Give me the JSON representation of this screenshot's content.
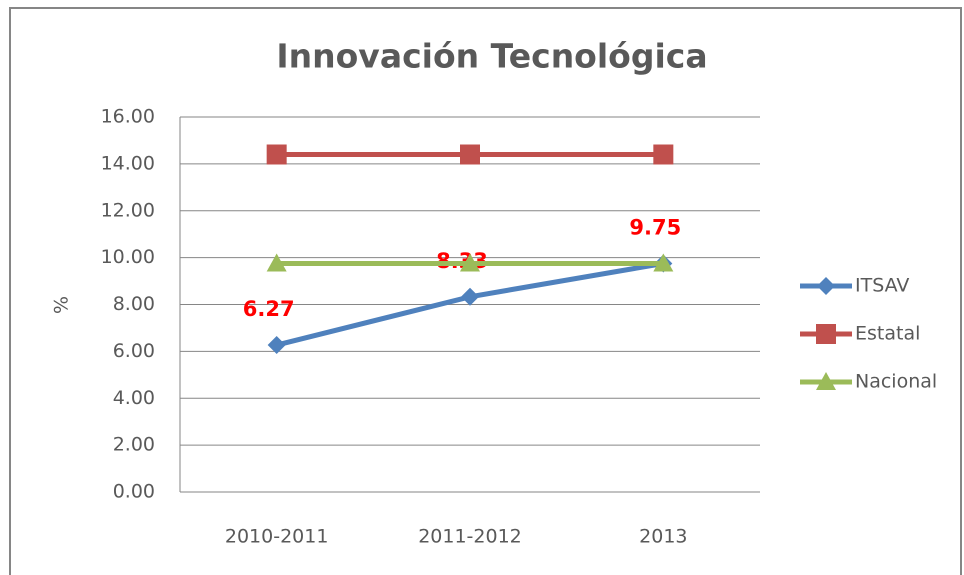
{
  "chart_data": {
    "type": "line",
    "title": "Innovación Tecnológica",
    "y_label": "%",
    "categories": [
      "2010-2011",
      "2011-2012",
      "2013"
    ],
    "series": [
      {
        "name": "ITSAV",
        "color": "#4f81bd",
        "marker": "diamond",
        "values": [
          6.27,
          8.33,
          9.75
        ],
        "data_labels": true,
        "label_color": "#ff0000"
      },
      {
        "name": "Estatal",
        "color": "#c0504d",
        "marker": "square",
        "values": [
          14.4,
          14.4,
          14.4
        ]
      },
      {
        "name": "Nacional",
        "color": "#9bbb59",
        "marker": "triangle",
        "values": [
          9.75,
          9.75,
          9.75
        ]
      }
    ],
    "ylim": [
      0,
      16
    ],
    "yticks": [
      {
        "value": 0,
        "label": "0.00"
      },
      {
        "value": 2,
        "label": "2.00"
      },
      {
        "value": 4,
        "label": "4.00"
      },
      {
        "value": 6,
        "label": "6.00"
      },
      {
        "value": 8,
        "label": "8.00"
      },
      {
        "value": 10,
        "label": "10.00"
      },
      {
        "value": 12,
        "label": "12.00"
      },
      {
        "value": 14,
        "label": "14.00"
      },
      {
        "value": 16,
        "label": "16.00"
      }
    ],
    "grid": true,
    "legend": "right"
  }
}
